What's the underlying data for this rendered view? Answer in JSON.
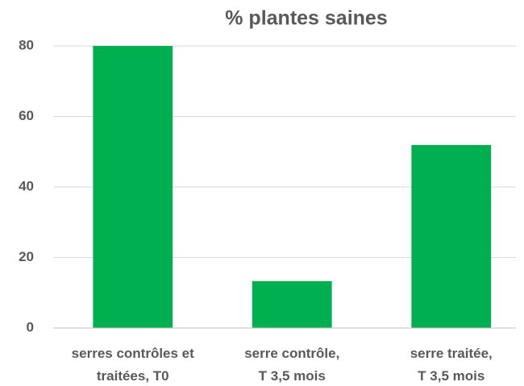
{
  "chart_data": {
    "type": "bar",
    "title": "% plantes saines",
    "categories": [
      "serres contrôles et\ntraitées, T0",
      "serre contrôle,\nT 3,5 mois",
      "serre traitée,\nT 3,5 mois"
    ],
    "values": [
      80,
      13.3,
      51.9
    ],
    "color": "#00b050",
    "ylim": [
      0,
      80
    ],
    "yticks": [
      0,
      20,
      40,
      60,
      80
    ],
    "grid": true
  }
}
